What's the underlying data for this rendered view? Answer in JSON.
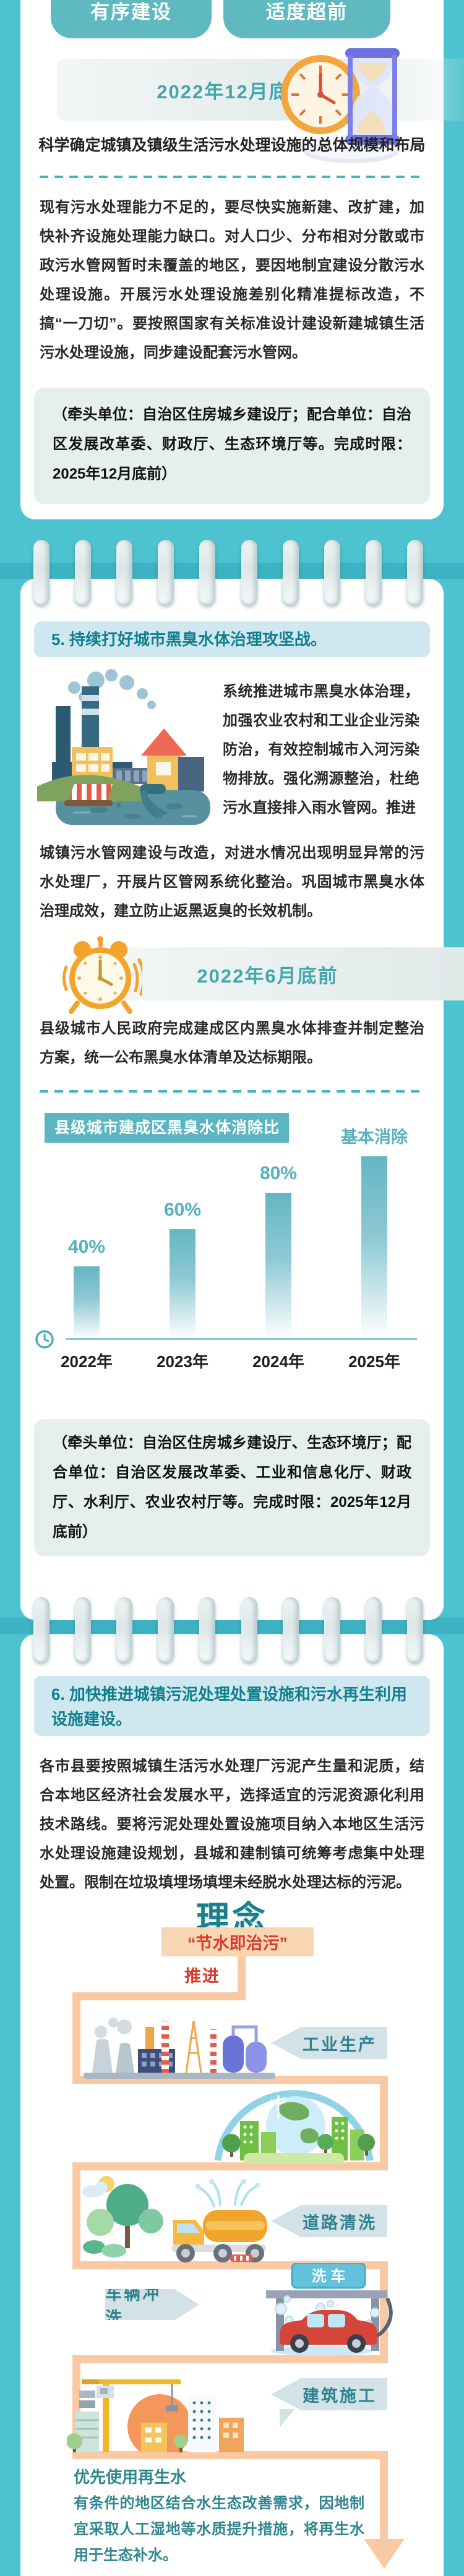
{
  "colors": {
    "page_bg": "#4dc3cf",
    "accent_teal": "#5fb9c0",
    "heading_bg": "#cfe8f0",
    "heading_text": "#117e8e",
    "banner_text": "#42a7ad",
    "note_bg": "#e4efee",
    "slogan_bg": "#f9d6b3",
    "red_accent": "#d93a2b",
    "flow_path": "#f9c9a4",
    "arrow_bg": "#d2e2e6",
    "chart_bar": "#69b9c6"
  },
  "top_tags": [
    "有序建设",
    "适度超前"
  ],
  "sec4": {
    "deadline": "2022年12月底前",
    "intro": "科学确定城镇及镇级生活污水处理设施的总体规模和布局",
    "body": "现有污水处理能力不足的，要尽快实施新建、改扩建，加快补齐设施处理能力缺口。对人口少、分布相对分散或市政污水管网暂时未覆盖的地区，要因地制宜建设分散污水处理设施。开展污水处理设施差别化精准提标改造，不搞“一刀切”。要按照国家有关标准设计建设新建城镇生活污水处理设施，同步建设配套污水管网。",
    "note": "（牵头单位：自治区住房城乡建设厅；配合单位：自治区发展改革委、财政厅、生态环境厅等。完成时限：2025年12月底前）"
  },
  "sec5": {
    "heading": "5. 持续打好城市黑臭水体治理攻坚战。",
    "body_right": "系统推进城市黑臭水体治理，加强农业农村和工业企业污染防治，有效控制城市入河污染物排放。强化溯源整治，杜绝污水直接排入雨水管网。推进",
    "body_full": "城镇污水管网建设与改造，对进水情况出现明显异常的污水处理厂，开展片区管网系统化整治。巩固城市黑臭水体治理成效，建立防止返黑返臭的长效机制。",
    "deadline": "2022年6月底前",
    "body2": "县级城市人民政府完成建成区内黑臭水体排查并制定整治方案，统一公布黑臭水体清单及达标期限。",
    "note": "（牵头单位：自治区住房城乡建设厅、生态环境厅；配合单位：自治区发展改革委、工业和信息化厅、财政厅、水利厅、农业农村厅等。完成时限：2025年12月底前）"
  },
  "chart_data": {
    "type": "bar",
    "title": "县级城市建成区黑臭水体消除比例",
    "categories": [
      "2022年",
      "2023年",
      "2024年",
      "2025年"
    ],
    "values": [
      40,
      60,
      80,
      100
    ],
    "value_labels": [
      "40%",
      "60%",
      "80%",
      "基本消除"
    ],
    "ylim": [
      0,
      100
    ],
    "xlabel": "",
    "ylabel": "",
    "grid": false,
    "legend": "none",
    "bar_color": "#69b9c6",
    "origin_icon": "clock-icon"
  },
  "sec6": {
    "heading": "6. 加快推进城镇污泥处理处置设施和污水再生利用设施建设。",
    "body": "各市县要按照城镇生活污水处理厂污泥产生量和泥质，结合本地区经济社会发展水平，选择适宜的污泥资源化利用技术路线。要将污泥处理处置设施项目纳入本地区生活污水处理设施建设规划，县城和建制镇可统筹考虑集中处理处置。限制在垃圾填埋场填埋未经脱水处理达标的污泥。",
    "concept": "理念",
    "slogan": "“节水即治污”",
    "promote": "推进",
    "flow": [
      "工业生产",
      "道路清洗",
      "车辆冲洗",
      "建筑施工"
    ],
    "carwash_sign": "洗 车",
    "reuse_title": "优先使用再生水",
    "reuse_body": "有条件的地区结合水生态改善需求，因地制宜采取人工湿地等水质提升措施，将再生水用于生态补水。"
  }
}
